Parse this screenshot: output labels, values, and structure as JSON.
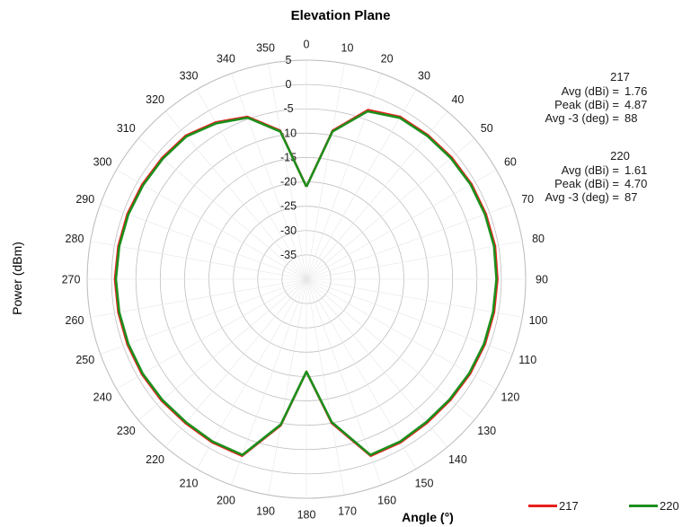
{
  "chart_data": {
    "type": "polar-line",
    "title": "Elevation Plane",
    "xlabel": "Angle (°)",
    "ylabel": "Power (dBm)",
    "angle_ticks": [
      "0",
      "10",
      "20",
      "30",
      "40",
      "50",
      "60",
      "70",
      "80",
      "90",
      "100",
      "110",
      "120",
      "130",
      "140",
      "150",
      "160",
      "170",
      "180",
      "190",
      "200",
      "210",
      "220",
      "230",
      "240",
      "250",
      "260",
      "270",
      "280",
      "290",
      "300",
      "310",
      "320",
      "330",
      "340",
      "350"
    ],
    "radial_ticks": [
      "5",
      "0",
      "-5",
      "-10",
      "-15",
      "-20",
      "-25",
      "-30",
      "-35"
    ],
    "rlim": [
      -40,
      5
    ],
    "grid": true,
    "legend_position": "bottom-right",
    "angles": [
      0,
      10,
      20,
      30,
      40,
      50,
      60,
      70,
      80,
      90,
      100,
      110,
      120,
      130,
      140,
      150,
      160,
      170,
      180,
      190,
      200,
      210,
      220,
      230,
      240,
      250,
      260,
      270,
      280,
      290,
      300,
      310,
      320,
      330,
      340,
      350
    ],
    "series": [
      {
        "name": "217",
        "color": "#e8201c",
        "values": [
          -21,
          -9,
          -3,
          -1.5,
          -1.3,
          -1.1,
          -0.9,
          -0.8,
          -0.7,
          -0.8,
          -0.9,
          -1.0,
          -1.2,
          -1.4,
          -1.5,
          -1.3,
          -1.4,
          -10,
          -21,
          -9.5,
          -1.4,
          -1.3,
          -1.4,
          -1.2,
          -1.0,
          -0.9,
          -0.8,
          -0.7,
          -0.8,
          -0.9,
          -1.1,
          -1.3,
          -1.5,
          -2.8,
          -4.5,
          -9
        ]
      },
      {
        "name": "220",
        "color": "#1c8f1c",
        "values": [
          -21,
          -9.2,
          -3.3,
          -1.7,
          -1.5,
          -1.3,
          -1.1,
          -1.0,
          -0.9,
          -1.0,
          -1.1,
          -1.2,
          -1.4,
          -1.6,
          -1.7,
          -1.5,
          -1.6,
          -10.2,
          -21,
          -9.7,
          -1.6,
          -1.5,
          -1.6,
          -1.4,
          -1.2,
          -1.1,
          -1.0,
          -0.9,
          -1.0,
          -1.1,
          -1.3,
          -1.5,
          -1.7,
          -3.0,
          -4.7,
          -9.2
        ]
      }
    ]
  },
  "stats": [
    {
      "name": "217",
      "rows": [
        {
          "label": "Avg (dBi) =",
          "value": "1.76"
        },
        {
          "label": "Peak (dBi) =",
          "value": "4.87"
        },
        {
          "label": "Avg -3 (deg) =",
          "value": "88"
        }
      ]
    },
    {
      "name": "220",
      "rows": [
        {
          "label": "Avg (dBi) =",
          "value": "1.61"
        },
        {
          "label": "Peak (dBi) =",
          "value": "4.70"
        },
        {
          "label": "Avg -3 (deg) =",
          "value": "87"
        }
      ]
    }
  ],
  "legend": [
    {
      "label": "217",
      "color": "#e8201c"
    },
    {
      "label": "220",
      "color": "#1c8f1c"
    }
  ]
}
